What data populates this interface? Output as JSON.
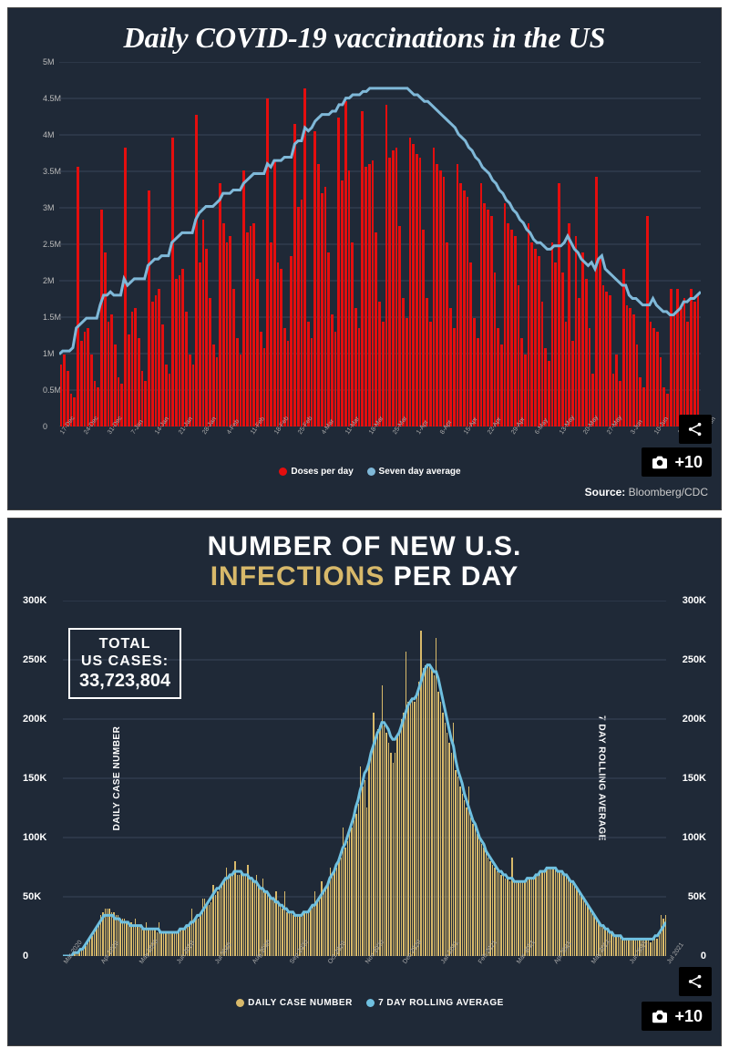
{
  "chart1": {
    "type": "bar+line",
    "title": "Daily COVID-19 vaccinations in the US",
    "background_color": "#1f2937",
    "bar_color": "#e40e0e",
    "line_color": "#7fb8d8",
    "grid_color": "#3a4558",
    "title_color": "#ffffff",
    "tick_color": "#bbbbbb",
    "title_fontsize": 32,
    "tick_fontsize": 9,
    "ylim": [
      0,
      5000000
    ],
    "yticks": [
      "0",
      "0.5M",
      "1M",
      "1.5M",
      "2M",
      "2.5M",
      "3M",
      "3.5M",
      "4M",
      "4.5M",
      "5M"
    ],
    "legend": [
      {
        "label": "Doses per day",
        "color": "#e40e0e"
      },
      {
        "label": "Seven day average",
        "color": "#7fb8d8"
      }
    ],
    "source": "Source: Bloomberg/CDC",
    "share_button": true,
    "photo_count": "+10",
    "bars": [
      0.19,
      0.22,
      0.17,
      0.1,
      0.09,
      0.79,
      0.26,
      0.29,
      0.3,
      0.22,
      0.14,
      0.12,
      0.66,
      0.53,
      0.32,
      0.34,
      0.25,
      0.15,
      0.13,
      0.85,
      0.28,
      0.35,
      0.36,
      0.27,
      0.17,
      0.14,
      0.72,
      0.38,
      0.4,
      0.42,
      0.31,
      0.19,
      0.16,
      0.88,
      0.45,
      0.46,
      0.48,
      0.35,
      0.22,
      0.19,
      0.95,
      0.5,
      0.63,
      0.54,
      0.39,
      0.25,
      0.21,
      0.74,
      0.62,
      0.56,
      0.58,
      0.42,
      0.27,
      0.22,
      0.78,
      0.59,
      0.61,
      0.62,
      0.45,
      0.29,
      0.24,
      1.0,
      0.56,
      0.81,
      0.5,
      0.48,
      0.3,
      0.26,
      0.52,
      0.92,
      0.67,
      0.69,
      1.03,
      0.32,
      0.27,
      0.9,
      0.8,
      0.71,
      0.73,
      0.53,
      0.34,
      0.29,
      0.94,
      0.75,
      0.99,
      0.78,
      0.56,
      0.36,
      0.3,
      0.96,
      0.79,
      0.8,
      0.81,
      0.59,
      0.38,
      0.32,
      0.98,
      0.82,
      0.84,
      0.85,
      0.61,
      0.39,
      0.33,
      0.88,
      0.86,
      0.83,
      0.82,
      0.6,
      0.39,
      0.32,
      0.85,
      0.8,
      0.78,
      0.76,
      0.56,
      0.36,
      0.3,
      0.8,
      0.74,
      0.72,
      0.7,
      0.5,
      0.33,
      0.27,
      0.74,
      0.68,
      0.66,
      0.64,
      0.47,
      0.3,
      0.25,
      0.68,
      0.62,
      0.6,
      0.58,
      0.43,
      0.27,
      0.22,
      0.62,
      0.56,
      0.54,
      0.52,
      0.38,
      0.24,
      0.2,
      0.56,
      0.5,
      0.74,
      0.47,
      0.32,
      0.62,
      0.26,
      0.58,
      0.39,
      0.53,
      0.45,
      0.3,
      0.16,
      0.76,
      0.51,
      0.43,
      0.41,
      0.4,
      0.16,
      0.22,
      0.14,
      0.48,
      0.37,
      0.36,
      0.34,
      0.25,
      0.15,
      0.12,
      0.64,
      0.32,
      0.3,
      0.29,
      0.21,
      0.12,
      0.1,
      0.42,
      0.34,
      0.42,
      0.36,
      0.39,
      0.32,
      0.42,
      0.38,
      0.4
    ],
    "line": [
      0.22,
      0.23,
      0.23,
      0.23,
      0.24,
      0.3,
      0.31,
      0.32,
      0.33,
      0.33,
      0.33,
      0.33,
      0.37,
      0.4,
      0.4,
      0.41,
      0.4,
      0.4,
      0.4,
      0.45,
      0.43,
      0.44,
      0.45,
      0.45,
      0.45,
      0.45,
      0.49,
      0.5,
      0.51,
      0.51,
      0.52,
      0.52,
      0.52,
      0.56,
      0.57,
      0.58,
      0.59,
      0.59,
      0.59,
      0.59,
      0.63,
      0.65,
      0.66,
      0.67,
      0.67,
      0.67,
      0.68,
      0.69,
      0.71,
      0.71,
      0.71,
      0.72,
      0.72,
      0.72,
      0.74,
      0.75,
      0.76,
      0.77,
      0.77,
      0.77,
      0.77,
      0.8,
      0.79,
      0.81,
      0.81,
      0.81,
      0.82,
      0.82,
      0.82,
      0.86,
      0.87,
      0.87,
      0.91,
      0.9,
      0.91,
      0.93,
      0.94,
      0.95,
      0.95,
      0.95,
      0.96,
      0.96,
      0.98,
      0.98,
      1.0,
      1.0,
      1.01,
      1.01,
      1.01,
      1.02,
      1.02,
      1.03,
      1.03,
      1.03,
      1.03,
      1.03,
      1.03,
      1.03,
      1.03,
      1.03,
      1.03,
      1.03,
      1.03,
      1.02,
      1.01,
      1.01,
      1.0,
      0.99,
      0.99,
      0.98,
      0.97,
      0.96,
      0.95,
      0.94,
      0.93,
      0.92,
      0.91,
      0.89,
      0.88,
      0.87,
      0.85,
      0.84,
      0.82,
      0.81,
      0.79,
      0.78,
      0.77,
      0.75,
      0.74,
      0.72,
      0.71,
      0.69,
      0.68,
      0.66,
      0.65,
      0.63,
      0.62,
      0.6,
      0.59,
      0.57,
      0.56,
      0.56,
      0.55,
      0.54,
      0.54,
      0.55,
      0.55,
      0.55,
      0.56,
      0.58,
      0.56,
      0.54,
      0.53,
      0.51,
      0.5,
      0.49,
      0.5,
      0.48,
      0.51,
      0.52,
      0.48,
      0.47,
      0.46,
      0.45,
      0.44,
      0.43,
      0.43,
      0.4,
      0.39,
      0.39,
      0.38,
      0.37,
      0.37,
      0.37,
      0.39,
      0.37,
      0.36,
      0.35,
      0.35,
      0.34,
      0.34,
      0.35,
      0.36,
      0.38,
      0.38,
      0.39,
      0.39,
      0.4,
      0.41
    ],
    "xlabels": [
      "17-Dec",
      "24-Dec",
      "31-Dec",
      "7-Jan",
      "14-Jan",
      "21-Jan",
      "28-Jan",
      "4-Feb",
      "11-Feb",
      "18-Feb",
      "25-Feb",
      "4-Mar",
      "11-Mar",
      "18-Mar",
      "25-Mar",
      "1-Apr",
      "8-Apr",
      "15-Apr",
      "22-Apr",
      "29-Apr",
      "6-May",
      "13-May",
      "20-May",
      "27-May",
      "3-Jun",
      "10-Jun",
      "17-Jun",
      "24-Jun"
    ]
  },
  "chart2": {
    "type": "bar+line",
    "title_pre": "NUMBER OF NEW U.S.",
    "title_hl": "INFECTIONS",
    "title_post": " PER DAY",
    "background_color": "#1f2937",
    "bar_color": "#d8b96a",
    "line_color": "#6fc0e0",
    "grid_color": "#3a4558",
    "title_color": "#ffffff",
    "highlight_color": "#d8b96a",
    "tick_color": "#ffffff",
    "title_fontsize": 30,
    "tick_fontsize": 11,
    "ylim": [
      0,
      300000
    ],
    "yticks": [
      "0",
      "50K",
      "100K",
      "150K",
      "200K",
      "250K",
      "300K"
    ],
    "yaxis_label_left": "DAILY CASE NUMBER",
    "yaxis_label_right": "7 DAY ROLLING AVERAGE",
    "stat_box": {
      "l1": "TOTAL",
      "l2": "US CASES:",
      "l3": "33,723,804"
    },
    "legend": [
      {
        "label": "DAILY CASE NUMBER",
        "color": "#d8b96a"
      },
      {
        "label": "7 DAY ROLLING AVERAGE",
        "color": "#6fc0e0"
      }
    ],
    "share_button": true,
    "photo_count": "+10",
    "bars": [
      0.0,
      0.0,
      0.0,
      0.0,
      0.0,
      0.01,
      0.01,
      0.01,
      0.02,
      0.02,
      0.03,
      0.04,
      0.05,
      0.06,
      0.07,
      0.09,
      0.1,
      0.12,
      0.13,
      0.14,
      0.14,
      0.14,
      0.13,
      0.13,
      0.12,
      0.12,
      0.11,
      0.11,
      0.11,
      0.1,
      0.1,
      0.1,
      0.09,
      0.11,
      0.09,
      0.09,
      0.09,
      0.08,
      0.1,
      0.08,
      0.08,
      0.08,
      0.08,
      0.07,
      0.1,
      0.07,
      0.07,
      0.07,
      0.07,
      0.07,
      0.07,
      0.07,
      0.07,
      0.07,
      0.08,
      0.08,
      0.08,
      0.09,
      0.09,
      0.14,
      0.1,
      0.11,
      0.11,
      0.12,
      0.17,
      0.17,
      0.15,
      0.15,
      0.16,
      0.21,
      0.18,
      0.19,
      0.2,
      0.21,
      0.22,
      0.26,
      0.23,
      0.24,
      0.24,
      0.28,
      0.24,
      0.24,
      0.25,
      0.24,
      0.24,
      0.27,
      0.23,
      0.23,
      0.22,
      0.24,
      0.21,
      0.2,
      0.23,
      0.19,
      0.19,
      0.18,
      0.17,
      0.17,
      0.19,
      0.16,
      0.15,
      0.14,
      0.19,
      0.13,
      0.13,
      0.13,
      0.12,
      0.12,
      0.12,
      0.12,
      0.12,
      0.13,
      0.13,
      0.13,
      0.14,
      0.15,
      0.19,
      0.16,
      0.17,
      0.22,
      0.19,
      0.2,
      0.21,
      0.26,
      0.24,
      0.25,
      0.26,
      0.28,
      0.29,
      0.38,
      0.32,
      0.34,
      0.36,
      0.38,
      0.4,
      0.42,
      0.45,
      0.56,
      0.5,
      0.52,
      0.44,
      0.57,
      0.6,
      0.72,
      0.65,
      0.67,
      0.68,
      0.8,
      0.68,
      0.66,
      0.63,
      0.6,
      0.57,
      0.6,
      0.65,
      0.67,
      0.7,
      0.72,
      0.9,
      0.75,
      0.76,
      0.76,
      0.75,
      0.77,
      0.81,
      0.96,
      0.85,
      0.86,
      0.86,
      0.86,
      0.85,
      0.83,
      0.94,
      0.78,
      0.75,
      0.72,
      0.69,
      0.66,
      0.63,
      0.6,
      0.69,
      0.55,
      0.53,
      0.5,
      0.48,
      0.46,
      0.44,
      0.5,
      0.41,
      0.39,
      0.38,
      0.36,
      0.35,
      0.33,
      0.32,
      0.31,
      0.29,
      0.28,
      0.27,
      0.26,
      0.25,
      0.25,
      0.24,
      0.24,
      0.23,
      0.23,
      0.22,
      0.29,
      0.22,
      0.22,
      0.22,
      0.22,
      0.22,
      0.22,
      0.23,
      0.23,
      0.23,
      0.23,
      0.24,
      0.24,
      0.25,
      0.25,
      0.25,
      0.26,
      0.26,
      0.26,
      0.26,
      0.26,
      0.25,
      0.25,
      0.25,
      0.24,
      0.24,
      0.23,
      0.22,
      0.22,
      0.21,
      0.2,
      0.19,
      0.18,
      0.17,
      0.16,
      0.15,
      0.14,
      0.13,
      0.12,
      0.11,
      0.1,
      0.09,
      0.09,
      0.08,
      0.08,
      0.07,
      0.07,
      0.06,
      0.06,
      0.06,
      0.06,
      0.05,
      0.05,
      0.05,
      0.05,
      0.05,
      0.05,
      0.05,
      0.05,
      0.05,
      0.05,
      0.05,
      0.05,
      0.05,
      0.04,
      0.05,
      0.06,
      0.05,
      0.07,
      0.12,
      0.11,
      0.12
    ],
    "line": [
      0.0,
      0.0,
      0.0,
      0.0,
      0.0,
      0.01,
      0.01,
      0.01,
      0.02,
      0.02,
      0.03,
      0.04,
      0.05,
      0.06,
      0.07,
      0.08,
      0.09,
      0.1,
      0.11,
      0.12,
      0.12,
      0.12,
      0.12,
      0.12,
      0.11,
      0.11,
      0.11,
      0.1,
      0.1,
      0.1,
      0.1,
      0.09,
      0.09,
      0.09,
      0.09,
      0.09,
      0.09,
      0.08,
      0.08,
      0.08,
      0.08,
      0.08,
      0.08,
      0.08,
      0.08,
      0.07,
      0.07,
      0.07,
      0.07,
      0.07,
      0.07,
      0.07,
      0.07,
      0.07,
      0.08,
      0.08,
      0.08,
      0.09,
      0.09,
      0.1,
      0.1,
      0.11,
      0.12,
      0.12,
      0.13,
      0.14,
      0.15,
      0.16,
      0.17,
      0.18,
      0.19,
      0.2,
      0.2,
      0.21,
      0.22,
      0.23,
      0.23,
      0.24,
      0.24,
      0.25,
      0.25,
      0.25,
      0.25,
      0.24,
      0.24,
      0.24,
      0.23,
      0.23,
      0.22,
      0.22,
      0.21,
      0.2,
      0.2,
      0.19,
      0.19,
      0.18,
      0.17,
      0.17,
      0.16,
      0.16,
      0.15,
      0.15,
      0.14,
      0.14,
      0.13,
      0.13,
      0.13,
      0.12,
      0.12,
      0.12,
      0.12,
      0.13,
      0.13,
      0.13,
      0.14,
      0.15,
      0.15,
      0.16,
      0.17,
      0.18,
      0.19,
      0.2,
      0.21,
      0.23,
      0.24,
      0.25,
      0.27,
      0.28,
      0.3,
      0.32,
      0.33,
      0.35,
      0.37,
      0.39,
      0.41,
      0.44,
      0.46,
      0.49,
      0.51,
      0.54,
      0.55,
      0.57,
      0.6,
      0.62,
      0.64,
      0.66,
      0.67,
      0.69,
      0.69,
      0.68,
      0.67,
      0.65,
      0.64,
      0.64,
      0.65,
      0.66,
      0.68,
      0.7,
      0.72,
      0.74,
      0.75,
      0.76,
      0.76,
      0.77,
      0.79,
      0.81,
      0.83,
      0.85,
      0.86,
      0.86,
      0.85,
      0.84,
      0.84,
      0.82,
      0.79,
      0.76,
      0.73,
      0.7,
      0.67,
      0.64,
      0.62,
      0.58,
      0.55,
      0.53,
      0.51,
      0.48,
      0.46,
      0.44,
      0.42,
      0.4,
      0.39,
      0.37,
      0.35,
      0.34,
      0.33,
      0.31,
      0.3,
      0.29,
      0.28,
      0.27,
      0.26,
      0.25,
      0.25,
      0.24,
      0.24,
      0.23,
      0.23,
      0.23,
      0.22,
      0.22,
      0.22,
      0.22,
      0.22,
      0.22,
      0.23,
      0.23,
      0.23,
      0.23,
      0.24,
      0.24,
      0.25,
      0.25,
      0.25,
      0.26,
      0.26,
      0.26,
      0.26,
      0.26,
      0.25,
      0.25,
      0.25,
      0.24,
      0.24,
      0.23,
      0.22,
      0.22,
      0.21,
      0.2,
      0.19,
      0.18,
      0.17,
      0.16,
      0.15,
      0.14,
      0.13,
      0.12,
      0.11,
      0.1,
      0.09,
      0.09,
      0.08,
      0.08,
      0.07,
      0.07,
      0.06,
      0.06,
      0.06,
      0.06,
      0.05,
      0.05,
      0.05,
      0.05,
      0.05,
      0.05,
      0.05,
      0.05,
      0.05,
      0.05,
      0.05,
      0.05,
      0.05,
      0.05,
      0.05,
      0.06,
      0.06,
      0.07,
      0.08,
      0.09,
      0.1
    ],
    "xlabels": [
      "Mar 2020",
      "Apr 2020",
      "May 2020",
      "Jun 2020",
      "Jul 2020",
      "Aug 2020",
      "Sep 2020",
      "Oct 2020",
      "Nov 2020",
      "Dec 2020",
      "Jan 2021",
      "Feb 2021",
      "Mar 2021",
      "Apr 2021",
      "May 2021",
      "Jun 2021",
      "Jul 2021"
    ]
  }
}
